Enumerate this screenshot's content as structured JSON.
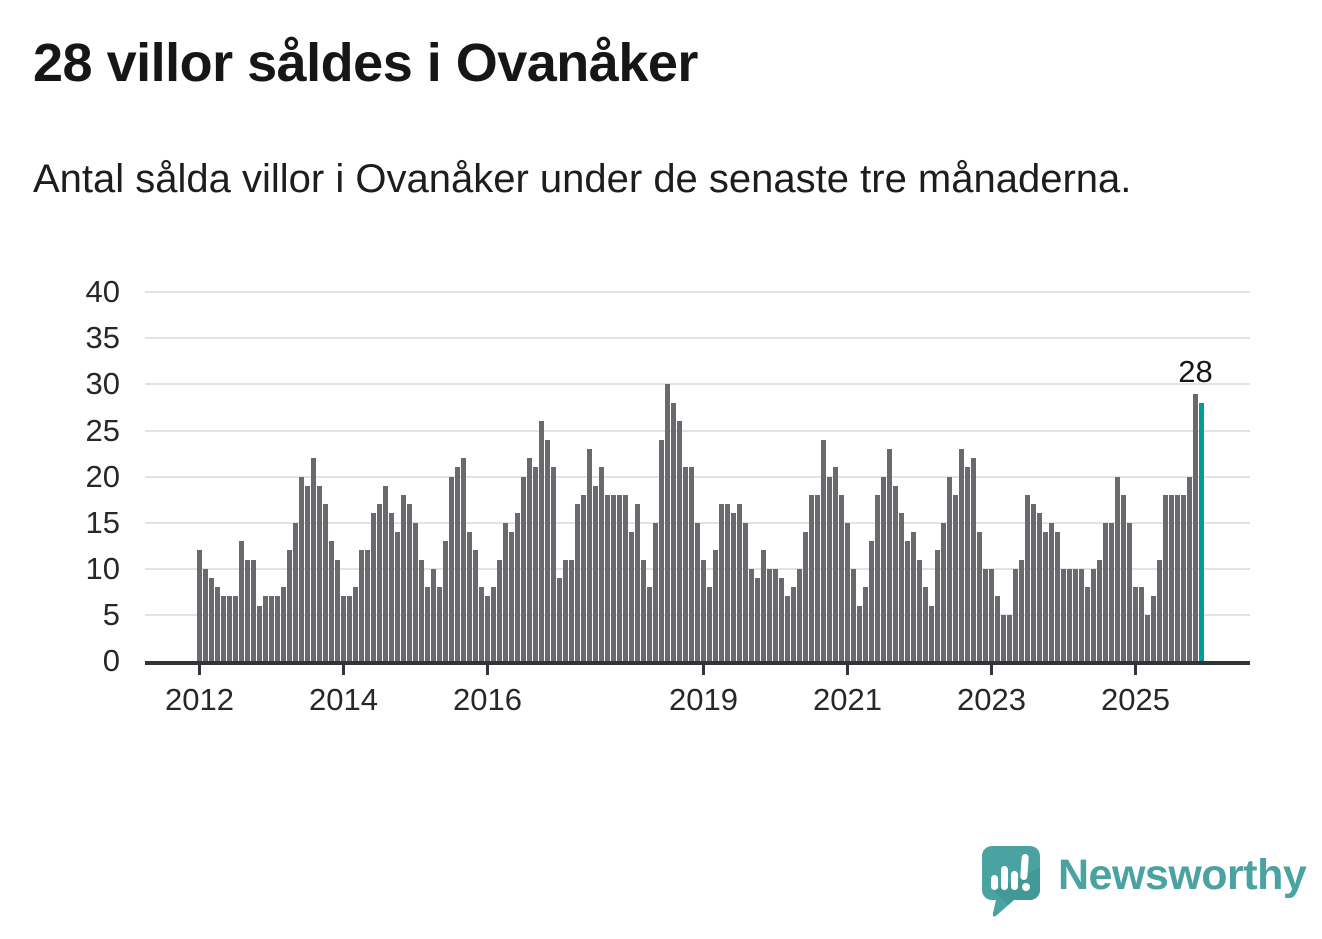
{
  "header": {
    "title": "28 villor såldes i Ovanåker",
    "subtitle": "Antal sålda villor i Ovanåker under de senaste tre månaderna."
  },
  "chart_data": {
    "type": "bar",
    "title": "28 villor såldes i Ovanåker",
    "subtitle": "Antal sålda villor i Ovanåker under de senaste tre månaderna.",
    "x_start_year": 2012,
    "x_tick_labels": [
      "2012",
      "2014",
      "2016",
      "2019",
      "2021",
      "2023",
      "2025"
    ],
    "x_tick_month_index": [
      0,
      24,
      48,
      84,
      108,
      132,
      156
    ],
    "y_ticks": [
      0,
      5,
      10,
      15,
      20,
      25,
      30,
      35,
      40
    ],
    "ylim": [
      0,
      40
    ],
    "grid": true,
    "legend": false,
    "values": [
      12,
      10,
      9,
      8,
      7,
      7,
      7,
      13,
      11,
      11,
      6,
      7,
      7,
      7,
      8,
      12,
      15,
      20,
      19,
      22,
      19,
      17,
      13,
      11,
      7,
      7,
      8,
      12,
      12,
      16,
      17,
      19,
      16,
      14,
      18,
      17,
      15,
      11,
      8,
      10,
      8,
      13,
      20,
      21,
      22,
      14,
      12,
      8,
      7,
      8,
      11,
      15,
      14,
      16,
      20,
      22,
      21,
      26,
      24,
      21,
      9,
      11,
      11,
      17,
      18,
      23,
      19,
      21,
      18,
      18,
      18,
      18,
      14,
      17,
      11,
      8,
      15,
      24,
      30,
      28,
      26,
      21,
      21,
      15,
      11,
      8,
      12,
      17,
      17,
      16,
      17,
      15,
      10,
      9,
      12,
      10,
      10,
      9,
      7,
      8,
      10,
      14,
      18,
      18,
      24,
      20,
      21,
      18,
      15,
      10,
      6,
      8,
      13,
      18,
      20,
      23,
      19,
      16,
      13,
      14,
      11,
      8,
      6,
      12,
      15,
      20,
      18,
      23,
      21,
      22,
      14,
      10,
      10,
      7,
      5,
      5,
      10,
      11,
      18,
      17,
      16,
      14,
      15,
      14,
      10,
      10,
      10,
      10,
      8,
      10,
      11,
      15,
      15,
      20,
      18,
      15,
      8,
      8,
      5,
      7,
      11,
      18,
      18,
      18,
      18,
      20,
      29,
      28
    ],
    "highlight_last_bar": true,
    "annotation": {
      "text": "28",
      "applies_to": "last-bar"
    },
    "colors": {
      "bar": "#6a6a6e",
      "highlight": "#009e98",
      "grid": "#e3e3e3",
      "axis": "#333338",
      "labels": "#28282c",
      "annotation_text": "#161616"
    }
  },
  "footer": {
    "brand": "Newsworthy",
    "logo_color": "#4aa3a1"
  }
}
